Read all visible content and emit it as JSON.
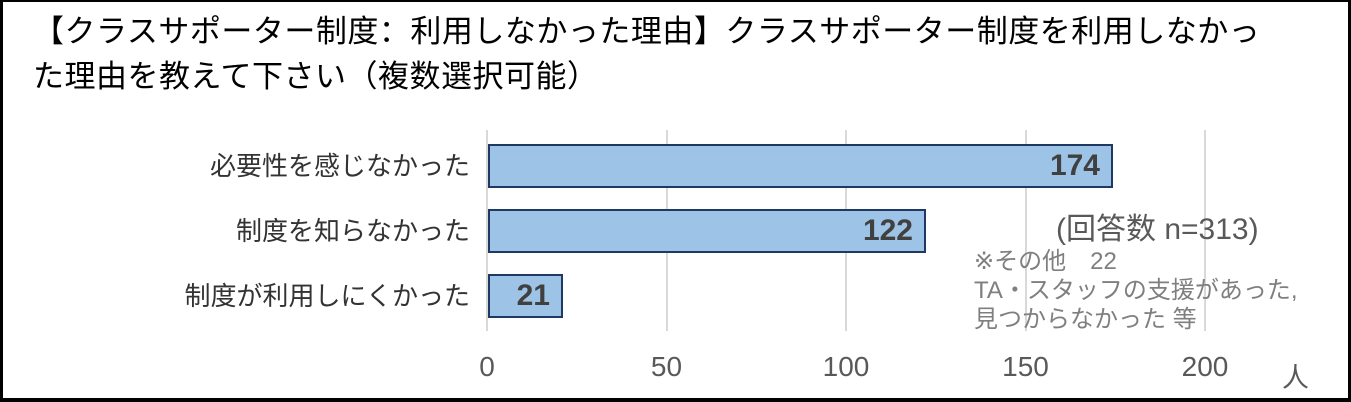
{
  "title": {
    "lines": [
      "【クラスサポーター制度：利用しなかった理由】クラスサポーター制度を利用しなかっ",
      "た理由を教えて下さい（複数選択可能）"
    ]
  },
  "chart_data": {
    "type": "bar",
    "orientation": "horizontal",
    "categories": [
      "必要性を感じなかった",
      "制度を知らなかった",
      "制度が利用しにくかった"
    ],
    "values": [
      174,
      122,
      21
    ],
    "xlim": [
      0,
      200
    ],
    "x_ticks": [
      0,
      50,
      100,
      150,
      200
    ],
    "x_unit": "人",
    "grid": true,
    "legend": "none",
    "data_labels": "inside-end",
    "colors": {
      "bar_fill": "#9dc3e6",
      "bar_border": "#1f3864",
      "gridline": "#d9d9d9",
      "tick_text": "#595959",
      "category_text": "#333333",
      "value_text": "#404040",
      "note_text": "#595959",
      "other_note_text": "#7f7f7f"
    },
    "annotations": {
      "response_count": "(回答数 n=313)",
      "other_lines": [
        "※その他　22",
        "TA・スタッフの支援があった,",
        "見つからなかった 等"
      ]
    }
  }
}
